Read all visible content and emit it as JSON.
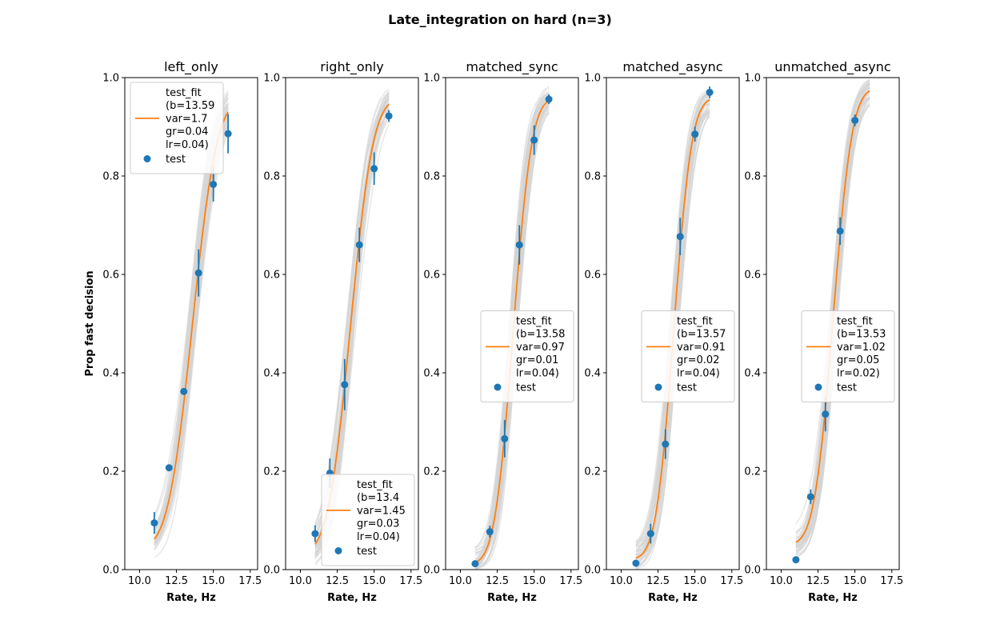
{
  "figure": {
    "suptitle": "Late_integration on hard (n=3)",
    "ylabel": "Prop fast decision",
    "colors": {
      "fit": "#ff7f0e",
      "points": "#1f77b4",
      "bootstrap": "#d3d3d3"
    }
  },
  "chart_data": [
    {
      "type": "scatter",
      "title": "left_only",
      "xlabel": "Rate, Hz",
      "xlim": [
        9.0,
        18.0
      ],
      "ylim": [
        0.0,
        1.0
      ],
      "xticks": [
        "10.0",
        "12.5",
        "15.0",
        "17.5"
      ],
      "yticks": [
        "0.0",
        "0.2",
        "0.4",
        "0.6",
        "0.8",
        "1.0"
      ],
      "legend_position": "upper left",
      "series": [
        {
          "name": "test",
          "x": [
            11,
            12,
            13,
            14,
            15,
            16
          ],
          "y": [
            0.095,
            0.207,
            0.362,
            0.603,
            0.783,
            0.886
          ],
          "err": [
            0.022,
            0.0,
            0.0,
            0.048,
            0.035,
            0.04
          ]
        },
        {
          "name": "test_fit",
          "legend_label": [
            "test_fit",
            "(b=13.59",
            "var=1.7",
            "gr=0.04",
            "lr=0.04)"
          ],
          "b": 13.59,
          "var": 1.7,
          "gr": 0.04,
          "lr": 0.04
        }
      ]
    },
    {
      "type": "scatter",
      "title": "right_only",
      "xlabel": "Rate, Hz",
      "xlim": [
        9.0,
        18.0
      ],
      "ylim": [
        0.0,
        1.0
      ],
      "xticks": [
        "10.0",
        "12.5",
        "15.0",
        "17.5"
      ],
      "yticks": [
        "0.0",
        "0.2",
        "0.4",
        "0.6",
        "0.8",
        "1.0"
      ],
      "legend_position": "lower right",
      "series": [
        {
          "name": "test",
          "x": [
            11,
            12,
            13,
            14,
            15,
            16
          ],
          "y": [
            0.073,
            0.196,
            0.376,
            0.66,
            0.815,
            0.922
          ],
          "err": [
            0.017,
            0.03,
            0.052,
            0.035,
            0.033,
            0.012
          ]
        },
        {
          "name": "test_fit",
          "legend_label": [
            "test_fit",
            "(b=13.4",
            "var=1.45",
            "gr=0.03",
            "lr=0.04)"
          ],
          "b": 13.4,
          "var": 1.45,
          "gr": 0.03,
          "lr": 0.04
        }
      ]
    },
    {
      "type": "scatter",
      "title": "matched_sync",
      "xlabel": "Rate, Hz",
      "xlim": [
        9.0,
        18.0
      ],
      "ylim": [
        0.0,
        1.0
      ],
      "xticks": [
        "10.0",
        "12.5",
        "15.0",
        "17.5"
      ],
      "yticks": [
        "0.0",
        "0.2",
        "0.4",
        "0.6",
        "0.8",
        "1.0"
      ],
      "legend_position": "center right",
      "series": [
        {
          "name": "test",
          "x": [
            11,
            12,
            13,
            14,
            15,
            16
          ],
          "y": [
            0.012,
            0.077,
            0.266,
            0.66,
            0.873,
            0.956
          ],
          "err": [
            0.0,
            0.012,
            0.038,
            0.04,
            0.03,
            0.01
          ]
        },
        {
          "name": "test_fit",
          "legend_label": [
            "test_fit",
            "(b=13.58",
            "var=0.97",
            "gr=0.01",
            "lr=0.04)"
          ],
          "b": 13.58,
          "var": 0.97,
          "gr": 0.01,
          "lr": 0.04
        }
      ]
    },
    {
      "type": "scatter",
      "title": "matched_async",
      "xlabel": "Rate, Hz",
      "xlim": [
        9.0,
        18.0
      ],
      "ylim": [
        0.0,
        1.0
      ],
      "xticks": [
        "10.0",
        "12.5",
        "15.0",
        "17.5"
      ],
      "yticks": [
        "0.0",
        "0.2",
        "0.4",
        "0.6",
        "0.8",
        "1.0"
      ],
      "legend_position": "center right",
      "series": [
        {
          "name": "test",
          "x": [
            11,
            12,
            13,
            14,
            15,
            16
          ],
          "y": [
            0.013,
            0.073,
            0.255,
            0.677,
            0.885,
            0.97
          ],
          "err": [
            0.0,
            0.02,
            0.03,
            0.038,
            0.015,
            0.012
          ]
        },
        {
          "name": "test_fit",
          "legend_label": [
            "test_fit",
            "(b=13.57",
            "var=0.91",
            "gr=0.02",
            "lr=0.04)"
          ],
          "b": 13.57,
          "var": 0.91,
          "gr": 0.02,
          "lr": 0.04
        }
      ]
    },
    {
      "type": "scatter",
      "title": "unmatched_async",
      "xlabel": "Rate, Hz",
      "xlim": [
        9.0,
        18.0
      ],
      "ylim": [
        0.0,
        1.0
      ],
      "xticks": [
        "10.0",
        "12.5",
        "15.0",
        "17.5"
      ],
      "yticks": [
        "0.0",
        "0.2",
        "0.4",
        "0.6",
        "0.8",
        "1.0"
      ],
      "legend_position": "center right",
      "series": [
        {
          "name": "test",
          "x": [
            11,
            12,
            13,
            14,
            15,
            16
          ],
          "y": [
            0.02,
            0.148,
            0.316,
            0.688,
            0.913,
            null
          ],
          "err": [
            0.0,
            0.015,
            0.035,
            0.028,
            0.012,
            0.0
          ]
        },
        {
          "name": "test_fit",
          "legend_label": [
            "test_fit",
            "(b=13.53",
            "var=1.02",
            "gr=0.05",
            "lr=0.02)"
          ],
          "b": 13.53,
          "var": 1.02,
          "gr": 0.05,
          "lr": 0.02
        }
      ]
    }
  ]
}
